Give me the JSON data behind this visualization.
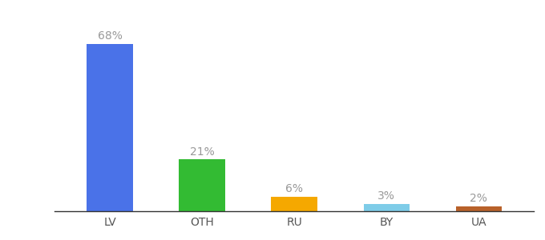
{
  "categories": [
    "LV",
    "OTH",
    "RU",
    "BY",
    "UA"
  ],
  "values": [
    68,
    21,
    6,
    3,
    2
  ],
  "labels": [
    "68%",
    "21%",
    "6%",
    "3%",
    "2%"
  ],
  "bar_colors": [
    "#4a72e8",
    "#33bb33",
    "#f5a800",
    "#7ecce8",
    "#b8612a"
  ],
  "background_color": "#ffffff",
  "ylim": [
    0,
    78
  ],
  "label_fontsize": 10,
  "tick_fontsize": 10,
  "label_color": "#999999",
  "tick_color": "#555555",
  "bar_width": 0.5
}
